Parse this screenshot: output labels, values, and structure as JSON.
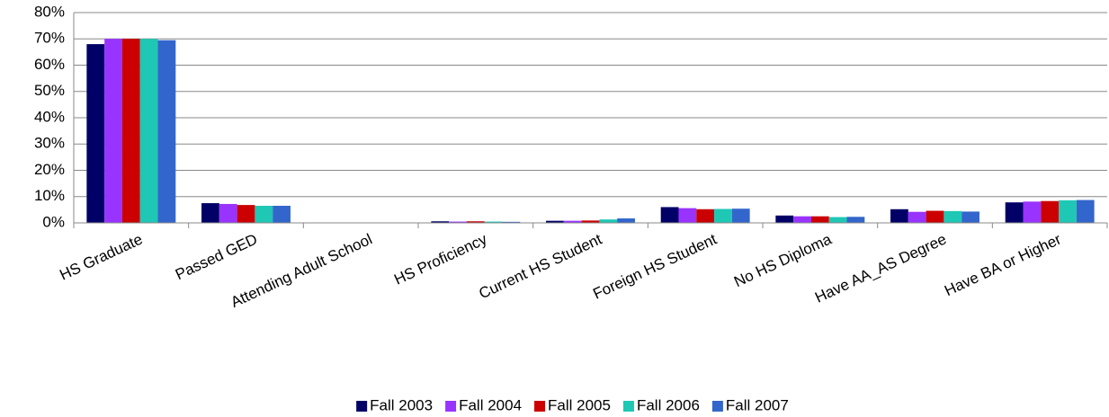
{
  "chart_data": {
    "type": "bar",
    "categories": [
      "HS Graduate",
      "Passed GED",
      "Attending Adult School",
      "HS Proficiency",
      "Current HS Student",
      "Foreign HS Student",
      "No HS Diploma",
      "Have AA_AS Degree",
      "Have BA or Higher"
    ],
    "series": [
      {
        "name": "Fall 2003",
        "color": "#000066",
        "values": [
          68,
          7.5,
          0,
          0.6,
          0.8,
          6,
          2.8,
          5.2,
          7.8
        ]
      },
      {
        "name": "Fall 2004",
        "color": "#9933ff",
        "values": [
          70,
          7.2,
          0,
          0.5,
          0.8,
          5.6,
          2.5,
          4.2,
          8.1
        ]
      },
      {
        "name": "Fall 2005",
        "color": "#cc0000",
        "values": [
          70,
          6.8,
          0,
          0.6,
          0.9,
          5.2,
          2.5,
          4.6,
          8.3
        ]
      },
      {
        "name": "Fall 2006",
        "color": "#1ec8b4",
        "values": [
          70,
          6.5,
          0,
          0.5,
          1.3,
          5.3,
          2.2,
          4.5,
          8.6
        ]
      },
      {
        "name": "Fall 2007",
        "color": "#3366cc",
        "values": [
          69.5,
          6.5,
          0,
          0.4,
          1.7,
          5.4,
          2.3,
          4.3,
          8.7
        ]
      }
    ],
    "ylim": [
      0,
      80
    ],
    "yticks": [
      {
        "value": 0,
        "label": "0%"
      },
      {
        "value": 10,
        "label": "10%"
      },
      {
        "value": 20,
        "label": "20%"
      },
      {
        "value": 30,
        "label": "30%"
      },
      {
        "value": 40,
        "label": "40%"
      },
      {
        "value": 50,
        "label": "50%"
      },
      {
        "value": 60,
        "label": "60%"
      },
      {
        "value": 70,
        "label": "70%"
      },
      {
        "value": 80,
        "label": "80%"
      }
    ],
    "grid": true,
    "legend": "bottom"
  }
}
